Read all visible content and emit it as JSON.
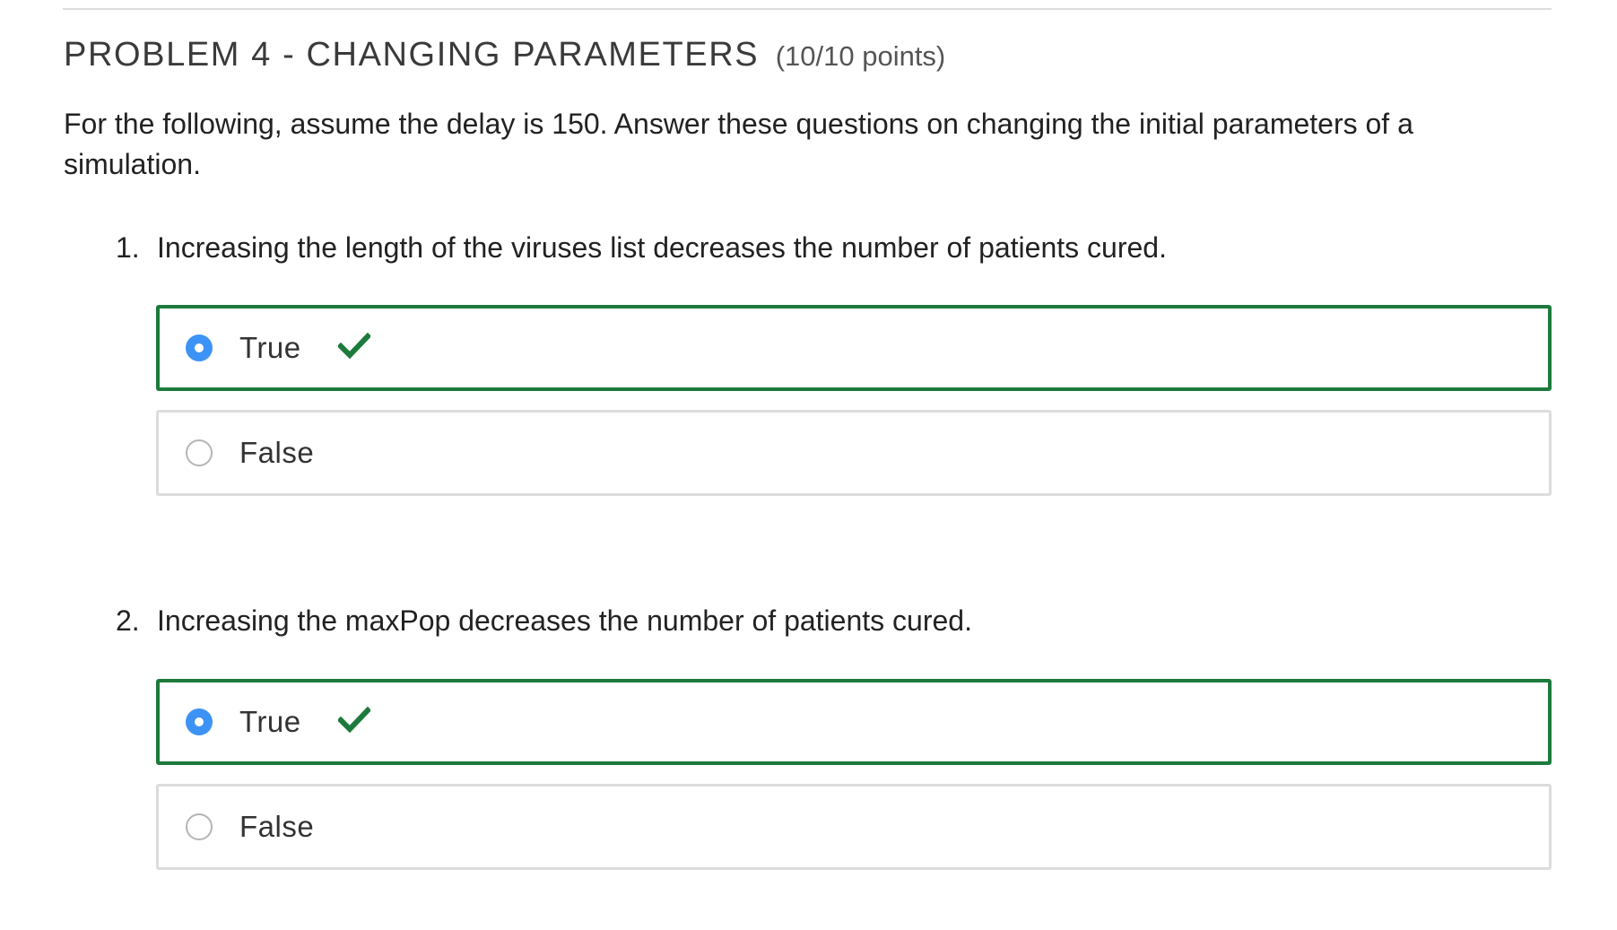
{
  "problem": {
    "title": "PROBLEM 4 - CHANGING PARAMETERS",
    "points": "(10/10 points)",
    "intro": "For the following, assume the delay is 150. Answer these questions on changing the initial parameters of a simulation."
  },
  "questions": [
    {
      "number": "1.",
      "text": "Increasing the length of the viruses list decreases the number of patients cured.",
      "options": [
        {
          "label": "True",
          "selected": true,
          "marked_correct": true
        },
        {
          "label": "False",
          "selected": false,
          "marked_correct": false
        }
      ]
    },
    {
      "number": "2.",
      "text": "Increasing the maxPop decreases the number of patients cured.",
      "options": [
        {
          "label": "True",
          "selected": true,
          "marked_correct": true
        },
        {
          "label": "False",
          "selected": false,
          "marked_correct": false
        }
      ]
    }
  ],
  "colors": {
    "correct_border": "#1c7a3c",
    "radio_selected": "#3d93f5",
    "checkmark": "#1c7a3c",
    "option_border": "#dcdcdc"
  },
  "icons": {
    "selected_indicator": "check-icon"
  }
}
